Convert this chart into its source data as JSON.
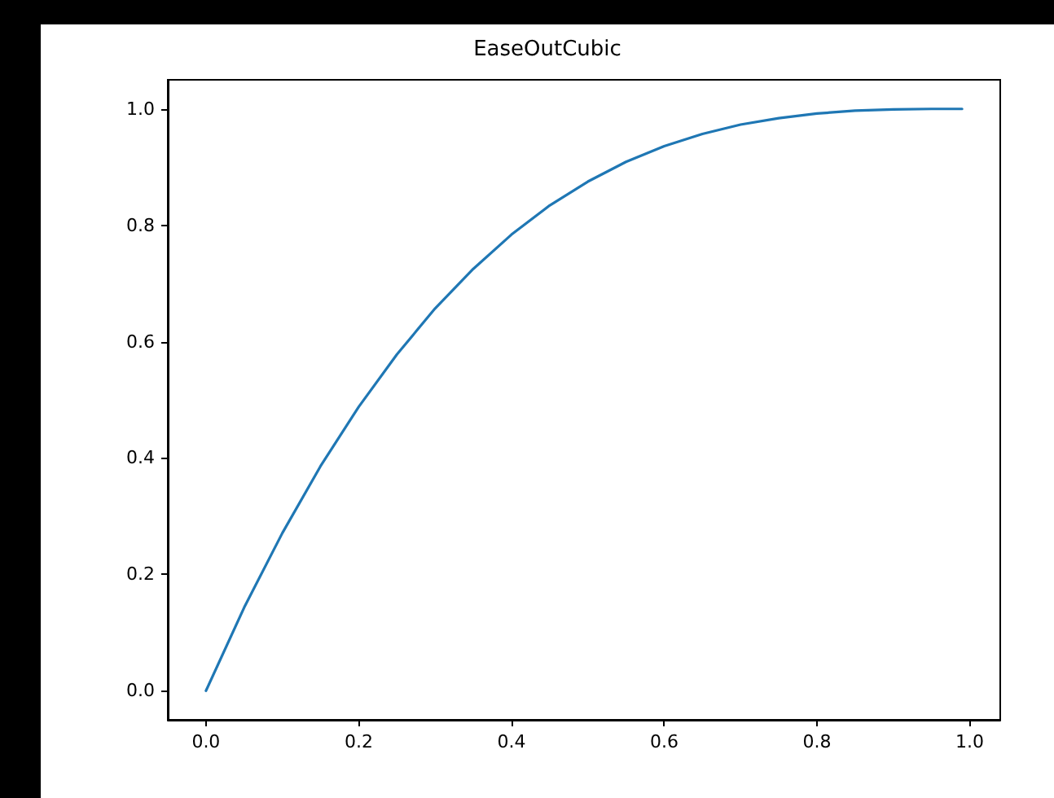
{
  "chart_data": {
    "type": "line",
    "title": "EaseOutCubic",
    "x": [
      0,
      0.05,
      0.1,
      0.15,
      0.2,
      0.25,
      0.3,
      0.35,
      0.4,
      0.45,
      0.5,
      0.55,
      0.6,
      0.65,
      0.7,
      0.75,
      0.8,
      0.85,
      0.9,
      0.95,
      0.99
    ],
    "series": [
      {
        "color": "#1f77b4",
        "values": [
          0,
          0.143,
          0.271,
          0.386,
          0.488,
          0.578,
          0.657,
          0.725,
          0.784,
          0.834,
          0.875,
          0.909,
          0.936,
          0.957,
          0.973,
          0.984,
          0.992,
          0.997,
          0.999,
          1.0,
          1.0
        ]
      }
    ],
    "xlim": [
      -0.05,
      1.04
    ],
    "ylim": [
      -0.05,
      1.05
    ],
    "xticks": [
      {
        "value": 0,
        "label": "0.0"
      },
      {
        "value": 0.2,
        "label": "0.2"
      },
      {
        "value": 0.4,
        "label": "0.4"
      },
      {
        "value": 0.6,
        "label": "0.6"
      },
      {
        "value": 0.8,
        "label": "0.8"
      },
      {
        "value": 1,
        "label": "1.0"
      }
    ],
    "yticks": [
      {
        "value": 0,
        "label": "0.0"
      },
      {
        "value": 0.2,
        "label": "0.2"
      },
      {
        "value": 0.4,
        "label": "0.4"
      },
      {
        "value": 0.6,
        "label": "0.6"
      },
      {
        "value": 0.8,
        "label": "0.8"
      },
      {
        "value": 1,
        "label": "1.0"
      }
    ],
    "marker": "none"
  }
}
